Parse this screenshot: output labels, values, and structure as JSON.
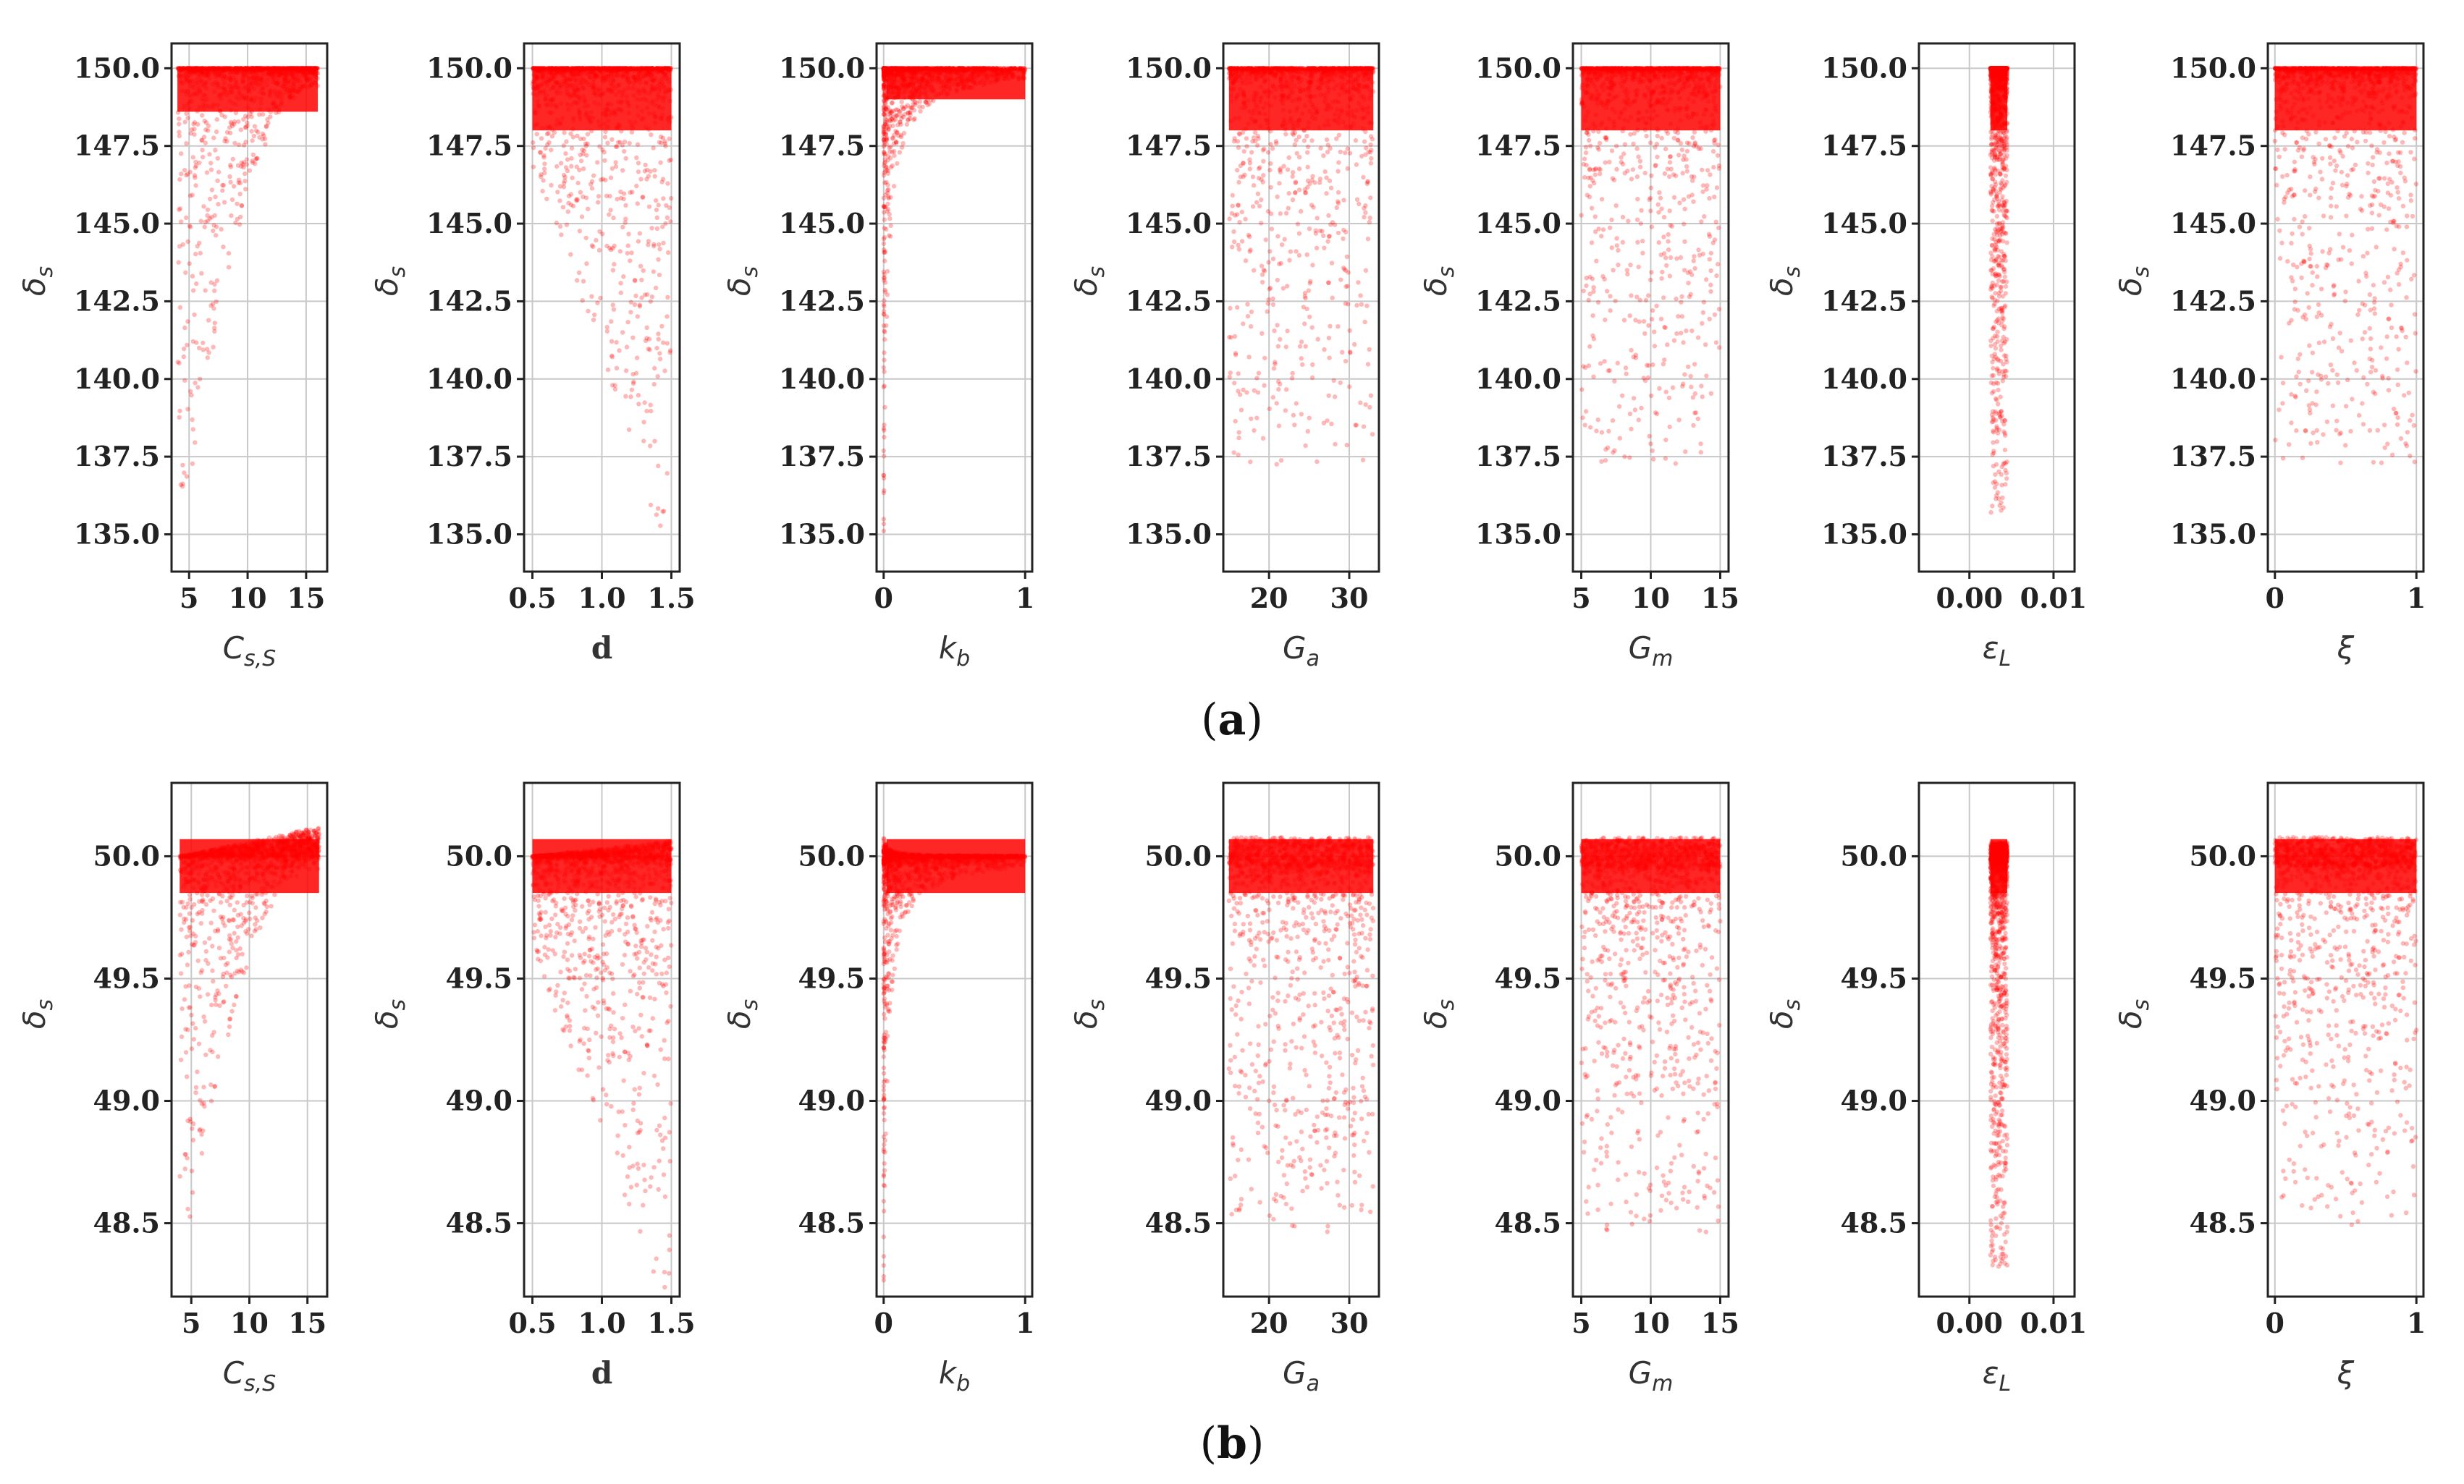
{
  "chart_data": [
    {
      "panel_label": "a",
      "type": "scatter",
      "series_color": "#ff0000",
      "ylabel": "δ_s",
      "ylim": [
        133.8,
        150.8
      ],
      "yticks": [
        135.0,
        137.5,
        140.0,
        142.5,
        145.0,
        147.5,
        150.0
      ],
      "ytick_labels": [
        "135.0",
        "137.5",
        "140.0",
        "142.5",
        "145.0",
        "147.5",
        "150.0"
      ],
      "grid": true,
      "subplots": [
        {
          "xlabel": "C_{s,S}",
          "xlim": [
            3.5,
            16.8
          ],
          "xticks": [
            5,
            10,
            15
          ],
          "xtick_labels": [
            "5",
            "10",
            "15"
          ],
          "pattern": "sat",
          "xr": [
            4,
            16
          ]
        },
        {
          "xlabel": "d",
          "xlim": [
            0.44,
            1.56
          ],
          "xticks": [
            0.5,
            1.0,
            1.5
          ],
          "xtick_labels": [
            "0.5",
            "1.0",
            "1.5"
          ],
          "pattern": "fan",
          "xr": [
            0.5,
            1.5
          ]
        },
        {
          "xlabel": "k_b",
          "xlim": [
            -0.05,
            1.05
          ],
          "xticks": [
            0,
            1
          ],
          "xtick_labels": [
            "0",
            "1"
          ],
          "pattern": "kb",
          "xr": [
            0,
            1
          ]
        },
        {
          "xlabel": "G_a",
          "xlim": [
            14.3,
            33.7
          ],
          "xticks": [
            20,
            30
          ],
          "xtick_labels": [
            "20",
            "30"
          ],
          "pattern": "unif",
          "xr": [
            15,
            33
          ]
        },
        {
          "xlabel": "G_m",
          "xlim": [
            4.4,
            15.6
          ],
          "xticks": [
            5,
            10,
            15
          ],
          "xtick_labels": [
            "5",
            "10",
            "15"
          ],
          "pattern": "unif",
          "xr": [
            5,
            15
          ]
        },
        {
          "xlabel": "ε_L",
          "xlim": [
            -0.006,
            0.0125
          ],
          "xticks": [
            0.0,
            0.01
          ],
          "xtick_labels": [
            "0.00",
            "0.01"
          ],
          "pattern": "narrow",
          "xr": [
            0.0025,
            0.0045
          ]
        },
        {
          "xlabel": "ξ",
          "xlim": [
            -0.05,
            1.05
          ],
          "xticks": [
            0,
            1
          ],
          "xtick_labels": [
            "0",
            "1"
          ],
          "pattern": "unif",
          "xr": [
            0,
            1
          ]
        }
      ]
    },
    {
      "panel_label": "b",
      "type": "scatter",
      "series_color": "#ff0000",
      "ylabel": "δ_s",
      "ylim": [
        48.2,
        50.3
      ],
      "yticks": [
        48.5,
        49.0,
        49.5,
        50.0
      ],
      "ytick_labels": [
        "48.5",
        "49.0",
        "49.5",
        "50.0"
      ],
      "grid": true,
      "subplots": [
        {
          "xlabel": "C_{s,S}",
          "xlim": [
            3.3,
            16.7
          ],
          "xticks": [
            5,
            10,
            15
          ],
          "xtick_labels": [
            "5",
            "10",
            "15"
          ],
          "pattern": "sat",
          "xr": [
            4,
            16
          ]
        },
        {
          "xlabel": "d",
          "xlim": [
            0.44,
            1.56
          ],
          "xticks": [
            0.5,
            1.0,
            1.5
          ],
          "xtick_labels": [
            "0.5",
            "1.0",
            "1.5"
          ],
          "pattern": "fan",
          "xr": [
            0.5,
            1.5
          ]
        },
        {
          "xlabel": "k_b",
          "xlim": [
            -0.05,
            1.05
          ],
          "xticks": [
            0,
            1
          ],
          "xtick_labels": [
            "0",
            "1"
          ],
          "pattern": "kb",
          "xr": [
            0,
            1
          ]
        },
        {
          "xlabel": "G_a",
          "xlim": [
            14.3,
            33.7
          ],
          "xticks": [
            20,
            30
          ],
          "xtick_labels": [
            "20",
            "30"
          ],
          "pattern": "unif",
          "xr": [
            15,
            33
          ]
        },
        {
          "xlabel": "G_m",
          "xlim": [
            4.4,
            15.6
          ],
          "xticks": [
            5,
            10,
            15
          ],
          "xtick_labels": [
            "5",
            "10",
            "15"
          ],
          "pattern": "unif",
          "xr": [
            5,
            15
          ]
        },
        {
          "xlabel": "ε_L",
          "xlim": [
            -0.006,
            0.0125
          ],
          "xticks": [
            0.0,
            0.01
          ],
          "xtick_labels": [
            "0.00",
            "0.01"
          ],
          "pattern": "narrow",
          "xr": [
            0.0025,
            0.0045
          ]
        },
        {
          "xlabel": "ξ",
          "xlim": [
            -0.05,
            1.05
          ],
          "xticks": [
            0,
            1
          ],
          "xtick_labels": [
            "0",
            "1"
          ],
          "pattern": "unif",
          "xr": [
            0,
            1
          ]
        }
      ]
    }
  ]
}
